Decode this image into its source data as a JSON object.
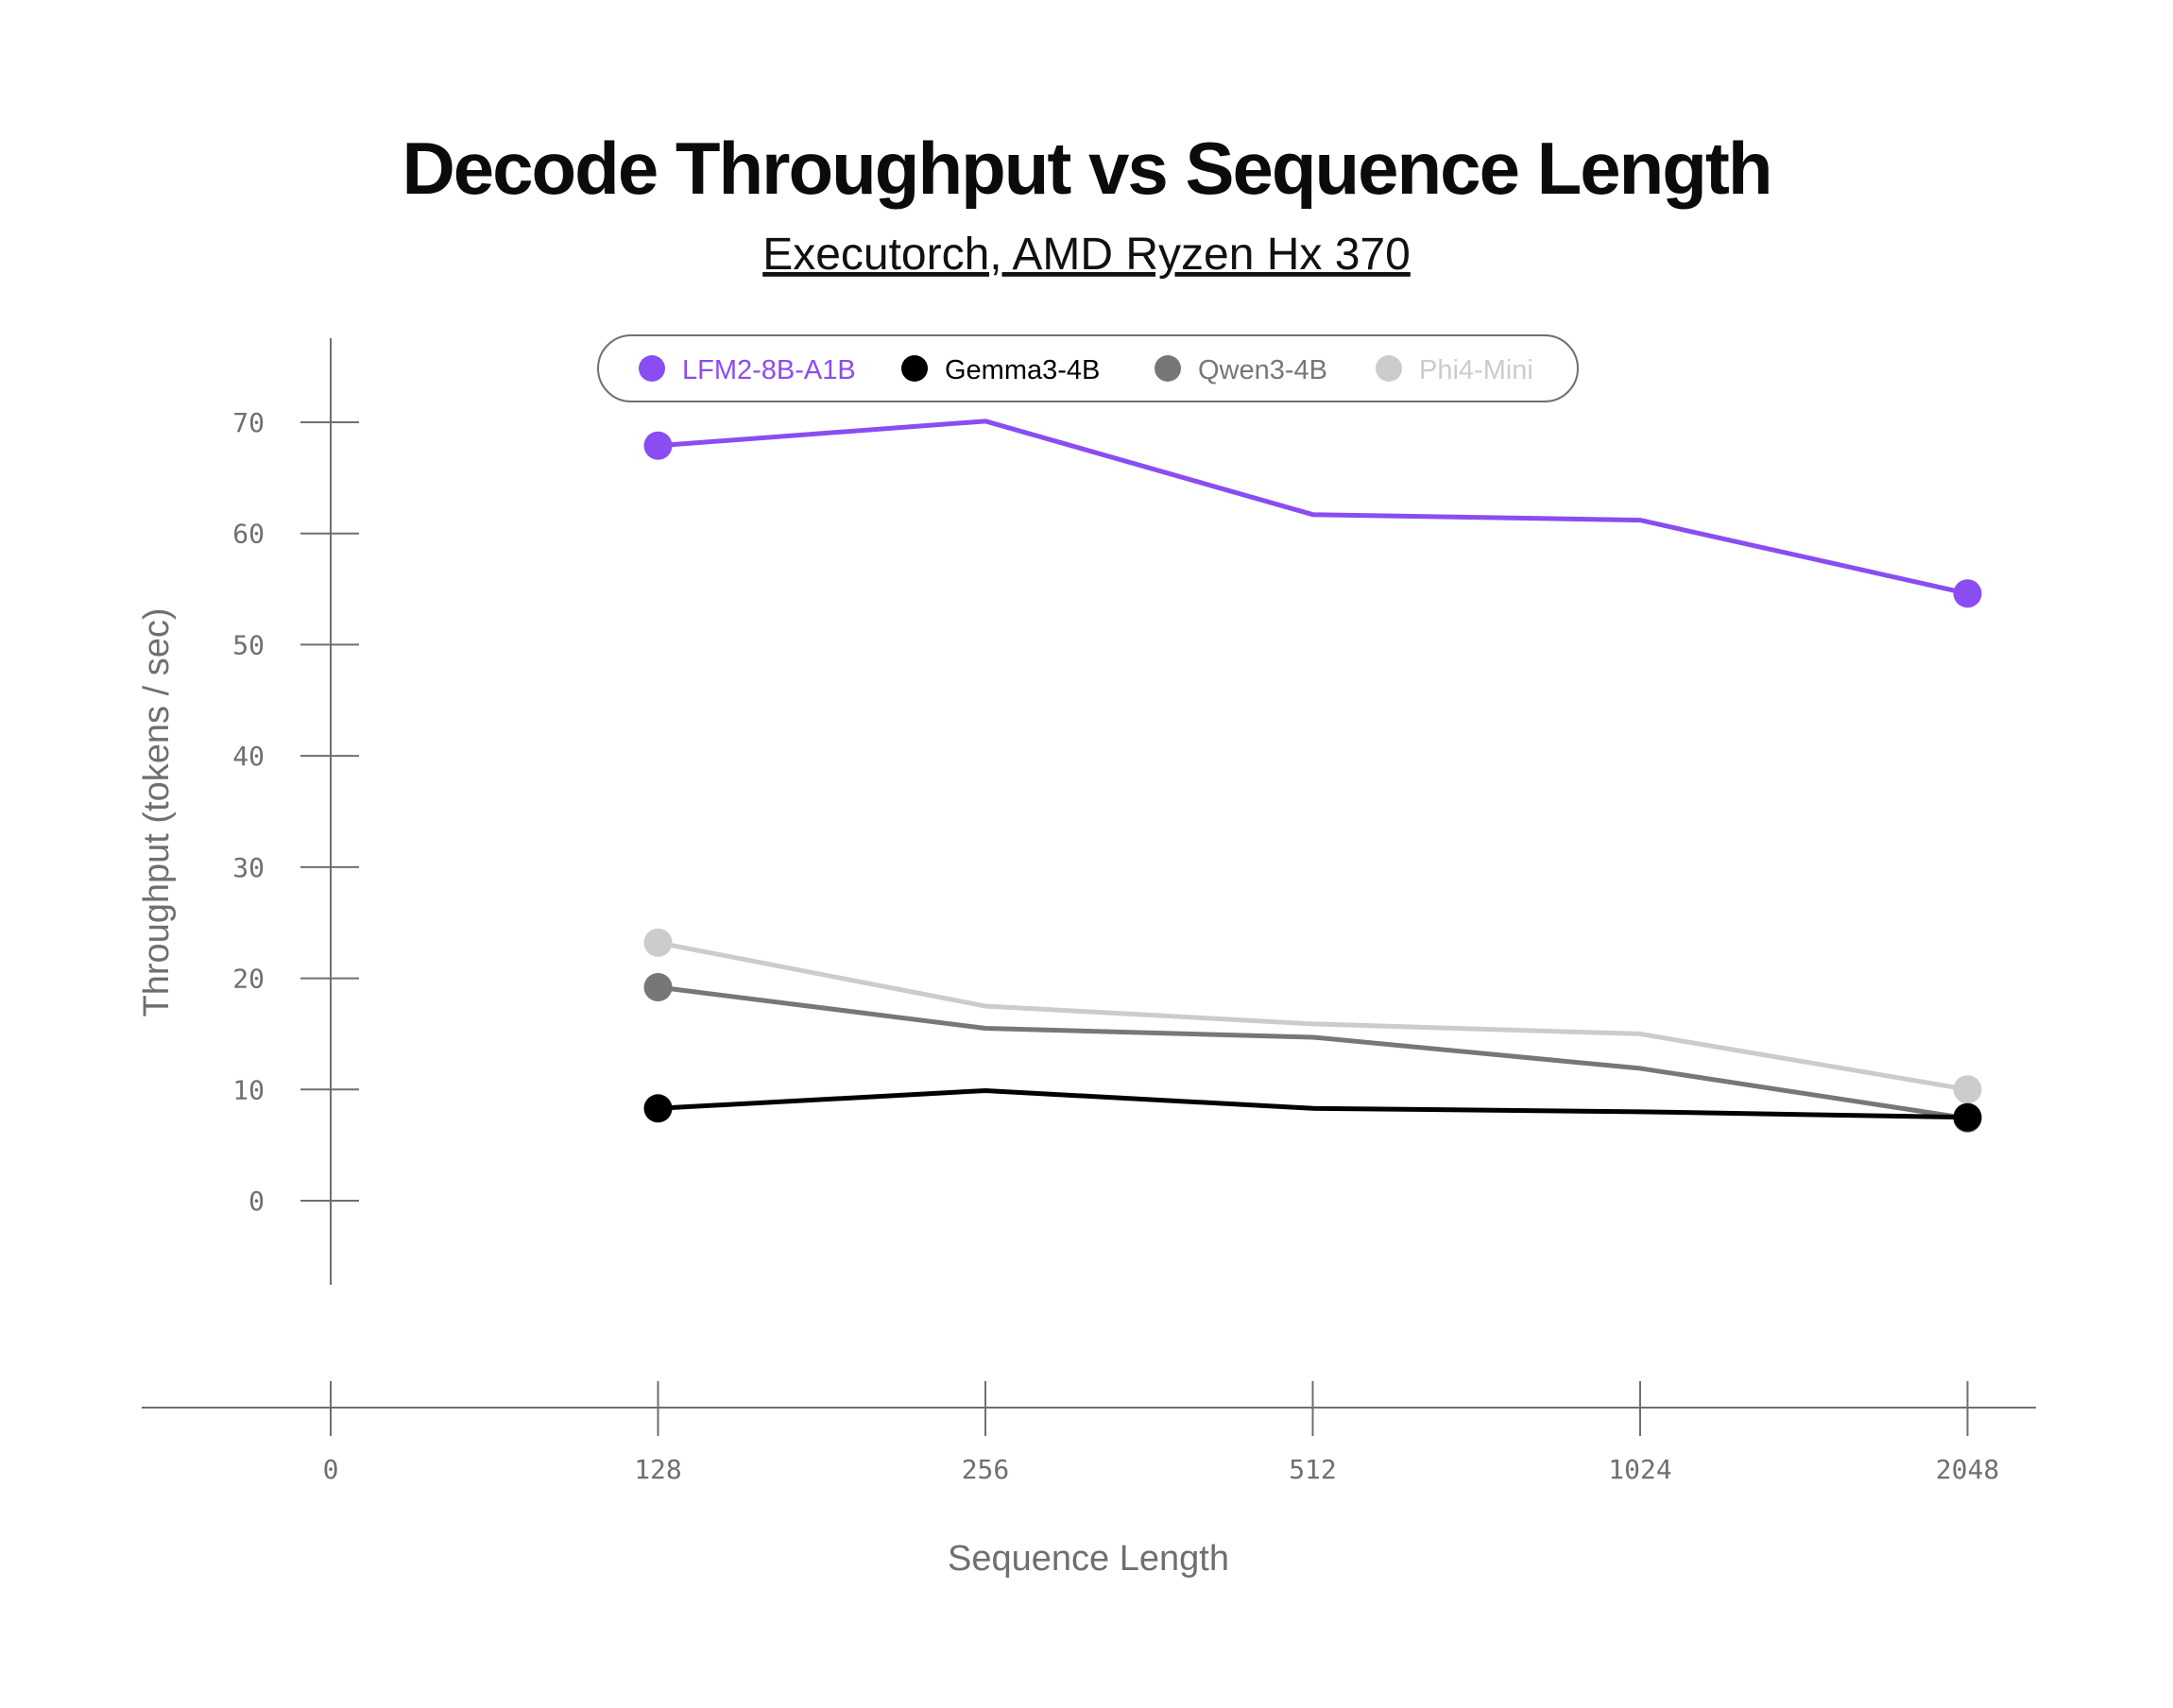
{
  "chart_data": {
    "type": "line",
    "title": "Decode Throughput vs Sequence Length",
    "subtitle": "Executorch, AMD Ryzen Hx 370",
    "xlabel": "Sequence Length",
    "ylabel": "Throughput (tokens / sec)",
    "x_ticks": [
      "0",
      "128",
      "256",
      "512",
      "1024",
      "2048"
    ],
    "categories": [
      "128",
      "256",
      "512",
      "1024",
      "2048"
    ],
    "y_ticks": [
      0,
      10,
      20,
      30,
      40,
      50,
      60,
      70
    ],
    "ylim": [
      -8,
      78
    ],
    "grid": false,
    "legend_position": "top",
    "series": [
      {
        "name": "LFM2-8B-A1B",
        "color": "#8a4df2",
        "values": [
          67.9,
          70.1,
          61.7,
          61.2,
          54.6
        ]
      },
      {
        "name": "Gemma3-4B",
        "color": "#000000",
        "values": [
          8.3,
          9.9,
          8.3,
          8.0,
          7.5
        ]
      },
      {
        "name": "Qwen3-4B",
        "color": "#777777",
        "values": [
          19.2,
          15.5,
          14.7,
          11.9,
          7.4
        ]
      },
      {
        "name": "Phi4-Mini",
        "color": "#cccccc",
        "values": [
          23.2,
          17.5,
          15.9,
          15.0,
          10.0
        ]
      }
    ]
  }
}
